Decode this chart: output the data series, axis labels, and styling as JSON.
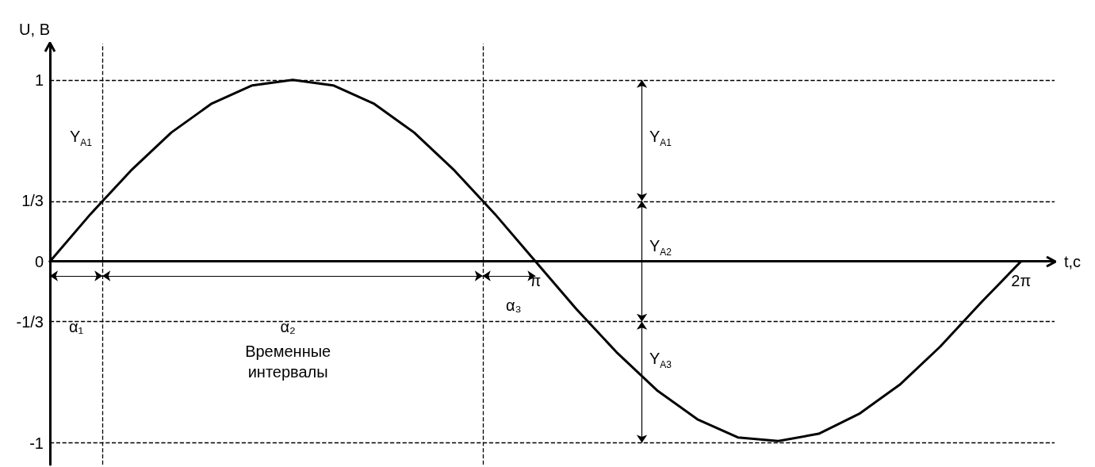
{
  "chart_data": {
    "type": "line",
    "xlabel": "t,c",
    "ylabel": "U, B",
    "xlim": [
      0,
      6.5
    ],
    "ylim": [
      -1.12,
      1.2
    ],
    "xticks": [
      {
        "value": 3.1416,
        "label": "π"
      },
      {
        "value": 6.2832,
        "label": "2π"
      }
    ],
    "yticks": [
      {
        "value": -1,
        "label": "-1"
      },
      {
        "value": -0.333,
        "label": "-1/3"
      },
      {
        "value": 0,
        "label": "0"
      },
      {
        "value": 0.333,
        "label": "1/3"
      },
      {
        "value": 1,
        "label": "1"
      }
    ],
    "x": [
      0,
      0.2618,
      0.5236,
      0.7854,
      1.0472,
      1.309,
      1.5708,
      1.8326,
      2.0944,
      2.3562,
      2.618,
      2.8798,
      3.1416,
      3.4034,
      3.6652,
      3.927,
      4.1888,
      4.4506,
      4.7124,
      4.9742,
      5.236,
      5.4978,
      5.7596,
      6.0214,
      6.2832
    ],
    "series": [
      {
        "color": "#000000",
        "values": [
          0,
          0.26,
          0.5,
          0.71,
          0.87,
          0.97,
          1,
          0.97,
          0.87,
          0.71,
          0.5,
          0.26,
          0,
          -0.26,
          -0.5,
          -0.71,
          -0.87,
          -0.97,
          -0.99,
          -0.95,
          -0.84,
          -0.68,
          -0.47,
          -0.23,
          0
        ]
      }
    ],
    "marker": "none",
    "line_style": "solid",
    "grid": false,
    "ref_lines": [
      {
        "axis": "y",
        "value": 1,
        "line_style": "dashed",
        "color": "#000000"
      },
      {
        "axis": "y",
        "value": 0.333,
        "line_style": "dashed",
        "color": "#000000"
      },
      {
        "axis": "y",
        "value": -0.333,
        "line_style": "dashed",
        "color": "#000000"
      },
      {
        "axis": "y",
        "value": -1,
        "line_style": "dashed",
        "color": "#000000"
      },
      {
        "axis": "x",
        "value": 0.34,
        "line_style": "dashed",
        "color": "#000000"
      },
      {
        "axis": "x",
        "value": 2.8,
        "line_style": "dashed",
        "color": "#000000"
      }
    ],
    "annotations": [
      "Y$_{A1}$",
      "Y$_{A1}$",
      "Y$_{A2}$",
      "Y$_{A3}$",
      "α₁",
      "α₂",
      "α₃",
      "Временные интервалы"
    ]
  }
}
